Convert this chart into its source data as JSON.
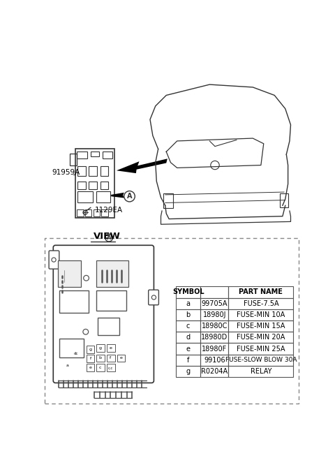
{
  "bg_color": "#ffffff",
  "table_data": {
    "headers": [
      "SYMBOL",
      "",
      "PART NAME"
    ],
    "rows": [
      [
        "a",
        "99705A",
        "FUSE-7.5A"
      ],
      [
        "b",
        "18980J",
        "FUSE-MIN 10A"
      ],
      [
        "c",
        "18980C",
        "FUSE-MIN 15A"
      ],
      [
        "d",
        "18980D",
        "FUSE-MIN 20A"
      ],
      [
        "e",
        "18980F",
        "FUSE-MIN 25A"
      ],
      [
        "f",
        "99106",
        "FUSE-SLOW BLOW 30A"
      ],
      [
        "g",
        "R0204A",
        "RELAY"
      ]
    ]
  },
  "label_91959A": "91959A",
  "label_1129EA": "1129EA",
  "label_view_a": "VIEW",
  "dashed_border_color": "#888888",
  "diagram_line_color": "#333333",
  "table_border_color": "#555555"
}
